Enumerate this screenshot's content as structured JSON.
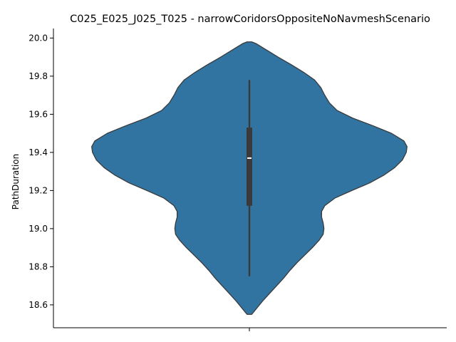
{
  "chart_data": {
    "type": "violin",
    "title": "C025_E025_J025_T025 - narrowCoridorsOppositeNoNavmeshScenario",
    "xlabel": "",
    "ylabel": "PathDuration",
    "ylim": [
      18.48,
      20.05
    ],
    "yticks": [
      18.6,
      18.8,
      19.0,
      19.2,
      19.4,
      19.6,
      19.8,
      20.0
    ],
    "ytick_labels": [
      "18.6",
      "18.8",
      "19.0",
      "19.2",
      "19.4",
      "19.6",
      "19.8",
      "20.0"
    ],
    "grid": false,
    "fill_color": "#3274a1",
    "edge_color": "#3a3a3a",
    "box_color": "#3a3a3a",
    "median_color": "#ffffff",
    "violin": {
      "y_min": 18.55,
      "y_max": 19.98,
      "density": [
        [
          18.55,
          0.03
        ],
        [
          18.58,
          0.09
        ],
        [
          18.62,
          0.17
        ],
        [
          18.66,
          0.26
        ],
        [
          18.7,
          0.35
        ],
        [
          18.74,
          0.44
        ],
        [
          18.78,
          0.52
        ],
        [
          18.82,
          0.61
        ],
        [
          18.86,
          0.71
        ],
        [
          18.9,
          0.81
        ],
        [
          18.94,
          0.9
        ],
        [
          18.97,
          0.95
        ],
        [
          19.0,
          0.96
        ],
        [
          19.03,
          0.95
        ],
        [
          19.06,
          0.93
        ],
        [
          19.09,
          0.93
        ],
        [
          19.12,
          0.97
        ],
        [
          19.16,
          1.1
        ],
        [
          19.2,
          1.32
        ],
        [
          19.24,
          1.55
        ],
        [
          19.28,
          1.73
        ],
        [
          19.32,
          1.87
        ],
        [
          19.36,
          1.97
        ],
        [
          19.4,
          2.02
        ],
        [
          19.43,
          2.03
        ],
        [
          19.46,
          1.99
        ],
        [
          19.5,
          1.83
        ],
        [
          19.54,
          1.59
        ],
        [
          19.58,
          1.33
        ],
        [
          19.62,
          1.13
        ],
        [
          19.66,
          1.03
        ],
        [
          19.7,
          0.97
        ],
        [
          19.74,
          0.92
        ],
        [
          19.78,
          0.84
        ],
        [
          19.82,
          0.7
        ],
        [
          19.86,
          0.54
        ],
        [
          19.9,
          0.37
        ],
        [
          19.94,
          0.21
        ],
        [
          19.97,
          0.09
        ],
        [
          19.98,
          0.03
        ]
      ],
      "whisker_low": 18.75,
      "q1": 19.12,
      "median": 19.37,
      "q3": 19.53,
      "whisker_high": 19.78
    }
  }
}
